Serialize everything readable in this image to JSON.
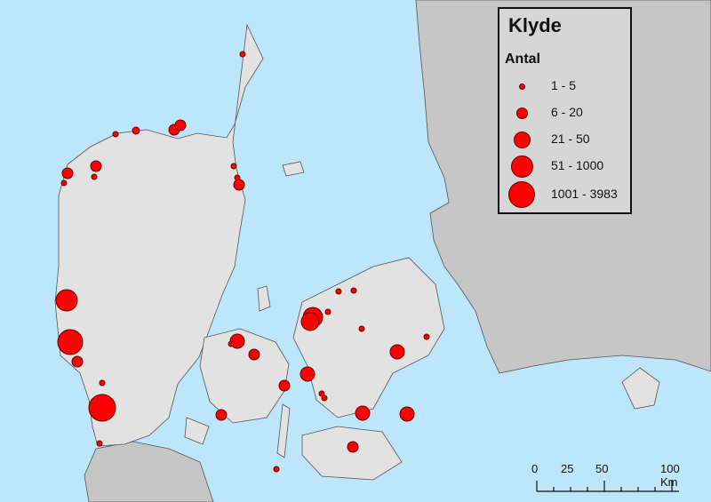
{
  "legend": {
    "title": "Klyde",
    "subtitle": "Antal",
    "classes": [
      {
        "label": "1 - 5"
      },
      {
        "label": "6 - 20"
      },
      {
        "label": "21 - 50"
      },
      {
        "label": "51 - 1000"
      },
      {
        "label": "1001 - 3983"
      }
    ]
  },
  "scale_bar": {
    "labels": [
      "0",
      "25",
      "50",
      "100 Km"
    ]
  },
  "colors": {
    "sea": "#bde6fa",
    "denmark_land": "#e2e2e2",
    "other_land": "#c6c6c6",
    "symbol": "#ff0000"
  }
}
